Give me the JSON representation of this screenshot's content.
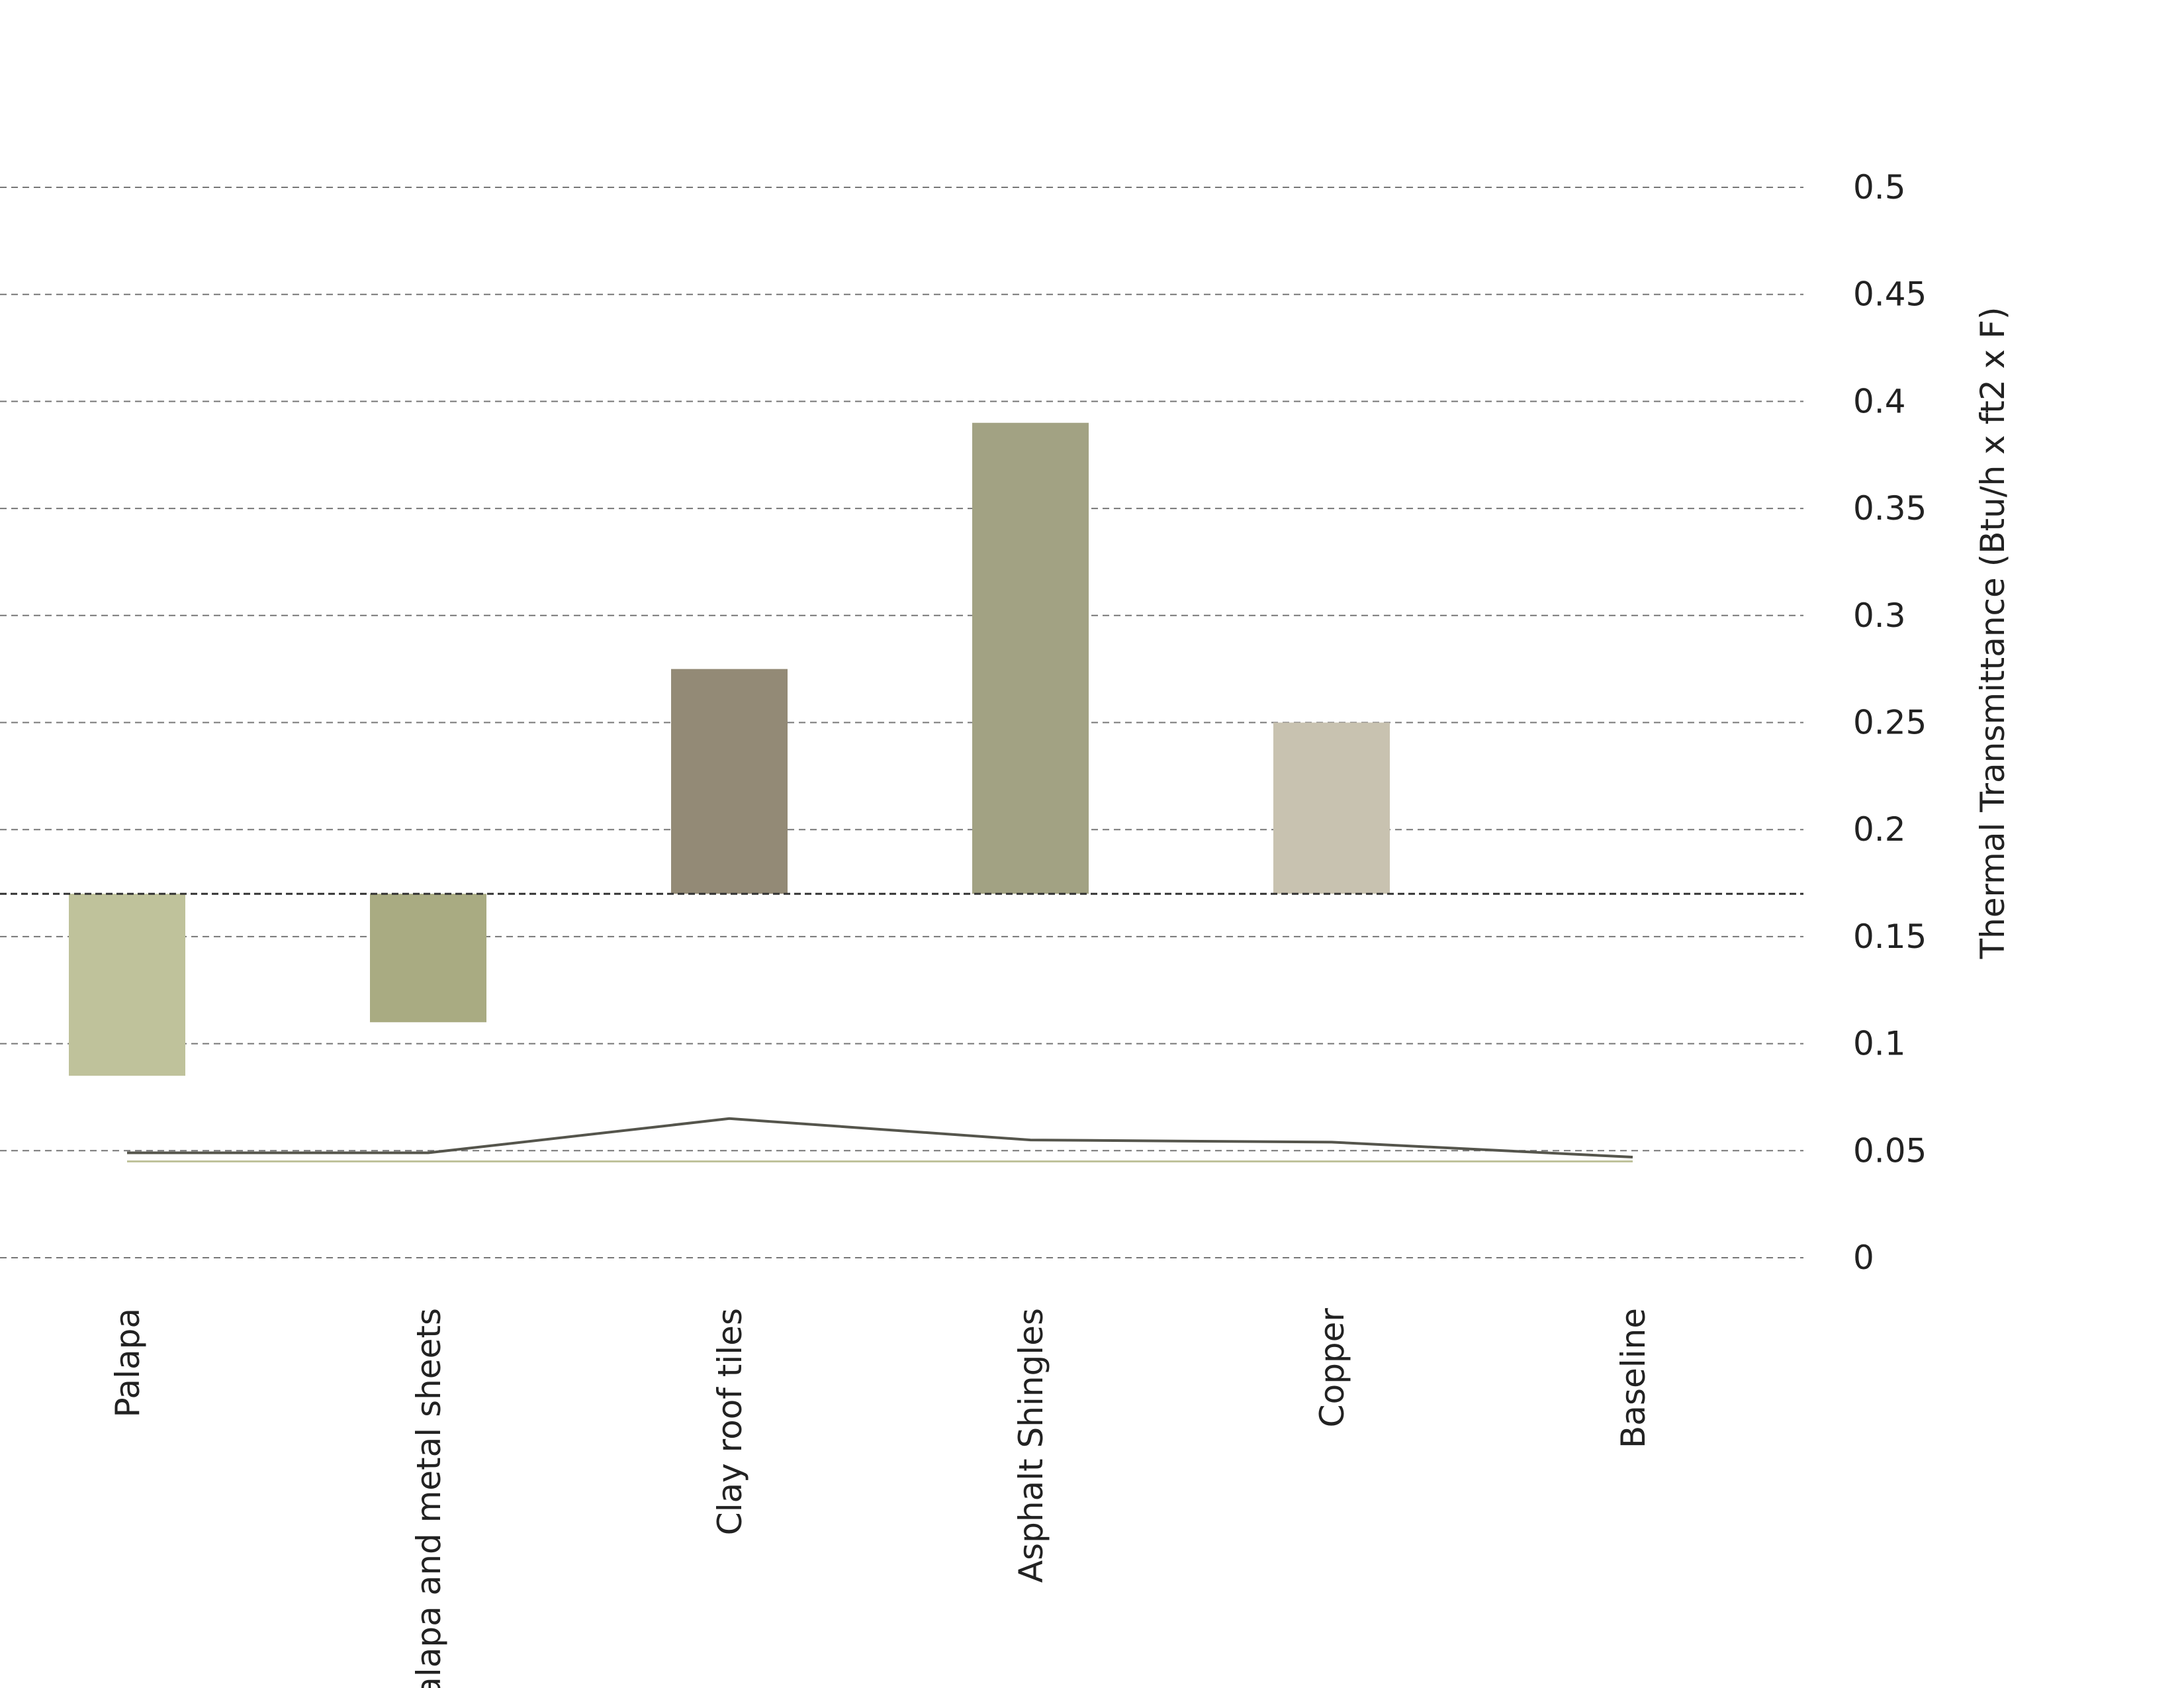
{
  "chart_data": {
    "type": "waterfall",
    "y_axis_label": "Thermal Transmittance (Btu/h x ft2 x F)",
    "categories": [
      "Palapa",
      "Palapa and metal sheets",
      "Clay roof tiles",
      "Asphalt Shingles",
      "Copper",
      "Baseline"
    ],
    "base": 0.17,
    "values": [
      0.085,
      0.11,
      0.275,
      0.39,
      0.25,
      null
    ],
    "colors": [
      "#bfc29b",
      "#a9ab82",
      "#938a76",
      "#a2a283",
      "#c8c2b0",
      "#cccccc"
    ],
    "lines": [
      {
        "color": "#55554c",
        "values": [
          0.049,
          0.049,
          0.065,
          0.055,
          0.054,
          0.047
        ]
      },
      {
        "color": "#bfc29b",
        "values": [
          0.045,
          0.045,
          0.045,
          0.045,
          0.045,
          0.045
        ]
      }
    ],
    "ylim": [
      0,
      0.5
    ],
    "yticks": [
      0,
      0.05,
      0.1,
      0.15,
      0.2,
      0.25,
      0.3,
      0.35,
      0.4,
      0.45,
      0.5
    ],
    "grid": true
  }
}
